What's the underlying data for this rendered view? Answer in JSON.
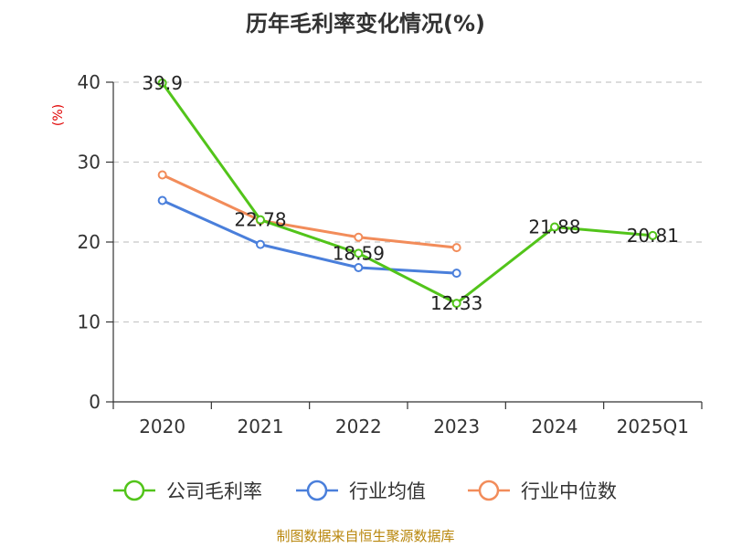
{
  "source_text": "制图数据来自恒生聚源数据库",
  "chart_data": {
    "type": "line",
    "title": "历年毛利率变化情况(%)",
    "ylabel": "(%)",
    "xlabel": "",
    "categories": [
      "2020",
      "2021",
      "2022",
      "2023",
      "2024",
      "2025Q1"
    ],
    "ylim": [
      0,
      40
    ],
    "yticks": [
      0,
      10,
      20,
      30,
      40
    ],
    "grid": true,
    "legend_position": "bottom",
    "series": [
      {
        "name": "公司毛利率",
        "color": "#52c41a",
        "values": [
          39.9,
          22.78,
          18.59,
          12.33,
          21.88,
          20.81
        ],
        "labels": [
          "39.9",
          "22.78",
          "18.59",
          "12.33",
          "21.88",
          "20.81"
        ]
      },
      {
        "name": "行业均值",
        "color": "#4a7fdb",
        "values": [
          25.2,
          19.7,
          16.8,
          16.1,
          null,
          null
        ]
      },
      {
        "name": "行业中位数",
        "color": "#f28c5a",
        "values": [
          28.4,
          22.7,
          20.6,
          19.3,
          null,
          null
        ]
      }
    ]
  }
}
